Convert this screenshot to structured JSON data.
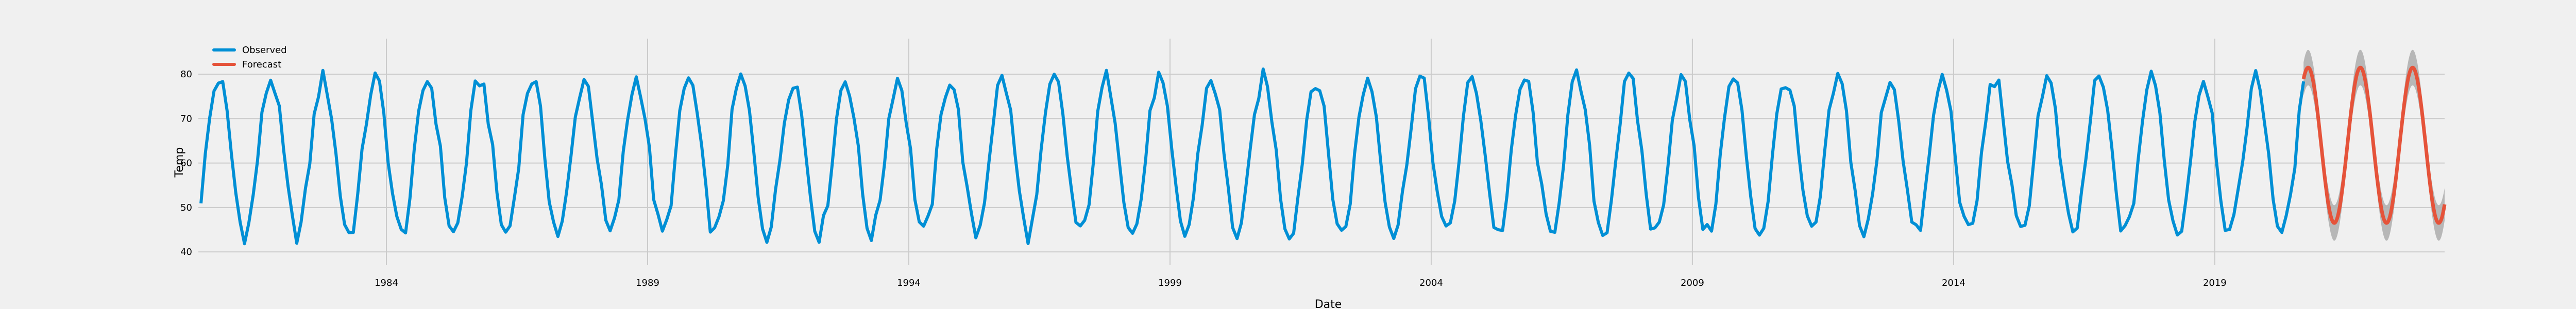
{
  "chart_data": {
    "type": "line",
    "title": "",
    "xlabel": "Date",
    "ylabel": "Temp",
    "xlim": [
      1980.4,
      2023.4
    ],
    "ylim": [
      37,
      88
    ],
    "grid": true,
    "legend_position": "top-left",
    "x_ticks": [
      {
        "value": 1984,
        "label": "1984"
      },
      {
        "value": 1989,
        "label": "1989"
      },
      {
        "value": 1994,
        "label": "1994"
      },
      {
        "value": 1999,
        "label": "1999"
      },
      {
        "value": 2004,
        "label": "2004"
      },
      {
        "value": 2009,
        "label": "2009"
      },
      {
        "value": 2014,
        "label": "2014"
      },
      {
        "value": 2019,
        "label": "2019"
      }
    ],
    "y_ticks": [
      {
        "value": 40,
        "label": "40"
      },
      {
        "value": 50,
        "label": "50"
      },
      {
        "value": 60,
        "label": "60"
      },
      {
        "value": 70,
        "label": "70"
      },
      {
        "value": 80,
        "label": "80"
      }
    ],
    "observed": {
      "name": "Observed",
      "color": "#008fd5",
      "start_year": 1980.45,
      "months": 484,
      "pattern": "seasonal"
    },
    "forecast": {
      "name": "Forecast",
      "color": "#e5533a",
      "band_color": "#b0b0b0",
      "start_year": 2020.7,
      "end_year": 2023.4
    },
    "legend": [
      {
        "label": "Observed",
        "color": "#008fd5"
      },
      {
        "label": "Forecast",
        "color": "#e5533a"
      }
    ]
  }
}
